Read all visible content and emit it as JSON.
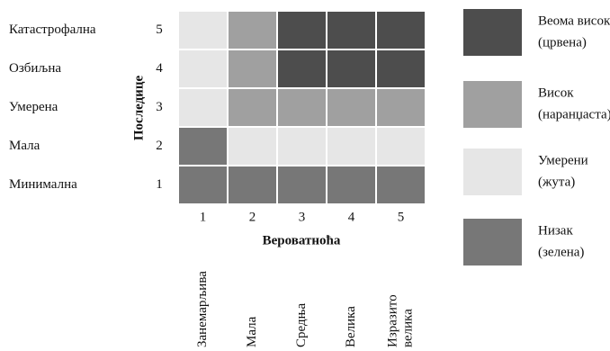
{
  "consequence_axis": {
    "title": "Последице",
    "levels": [
      {
        "label": "Катастрофална",
        "number": "5"
      },
      {
        "label": "Озбиљна",
        "number": "4"
      },
      {
        "label": "Умерена",
        "number": "3"
      },
      {
        "label": "Мала",
        "number": "2"
      },
      {
        "label": "Минимална",
        "number": "1"
      }
    ]
  },
  "probability_axis": {
    "title": "Вероватноћа",
    "levels": [
      {
        "number": "1",
        "label_lines": [
          "Занемарљива"
        ]
      },
      {
        "number": "2",
        "label_lines": [
          "Мала"
        ]
      },
      {
        "number": "3",
        "label_lines": [
          "Средња"
        ]
      },
      {
        "number": "4",
        "label_lines": [
          "Велика"
        ]
      },
      {
        "number": "5",
        "label_lines": [
          "Изразито",
          "велика"
        ]
      }
    ]
  },
  "legend": [
    {
      "lines": [
        "Веома висок",
        "(црвена)"
      ]
    },
    {
      "lines": [
        "Висок",
        "(наранџаста)"
      ]
    },
    {
      "lines": [
        "Умерени",
        "(жута)"
      ]
    },
    {
      "lines": [
        "Низак",
        "(зелена)"
      ]
    }
  ]
}
